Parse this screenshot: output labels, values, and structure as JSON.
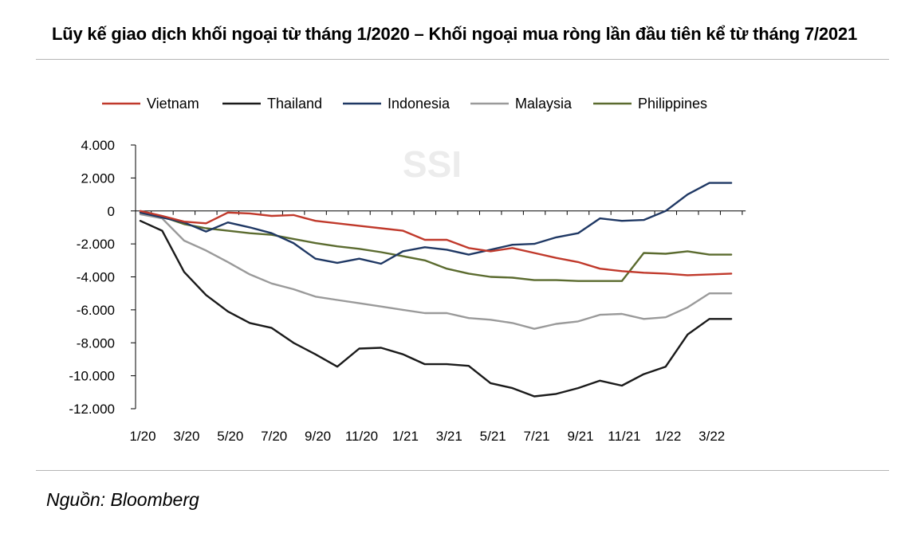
{
  "title": "Lũy kế giao dịch khối ngoại từ tháng 1/2020 – Khối ngoại mua ròng lần đầu tiên kể từ tháng 7/2021",
  "source": "Nguồn: Bloomberg",
  "watermark": "SSI",
  "chart_data": {
    "type": "line",
    "title": "Lũy kế giao dịch khối ngoại từ tháng 1/2020 – Khối ngoại mua ròng lần đầu tiên kể từ tháng 7/2021",
    "xlabel": "",
    "ylabel": "",
    "ylim": [
      -12000,
      4000
    ],
    "yticks": [
      4000,
      2000,
      0,
      -2000,
      -4000,
      -6000,
      -8000,
      -10000,
      -12000
    ],
    "ytick_labels": [
      "4.000",
      "2.000",
      "0",
      "-2.000",
      "-4.000",
      "-6.000",
      "-8.000",
      "-10.000",
      "-12.000"
    ],
    "x": [
      "1/20",
      "2/20",
      "3/20",
      "4/20",
      "5/20",
      "6/20",
      "7/20",
      "8/20",
      "9/20",
      "10/20",
      "11/20",
      "12/20",
      "1/21",
      "2/21",
      "3/21",
      "4/21",
      "5/21",
      "6/21",
      "7/21",
      "8/21",
      "9/21",
      "10/21",
      "11/21",
      "12/21",
      "1/22",
      "2/22",
      "3/22",
      "4/22"
    ],
    "xtick_labels": [
      "1/20",
      "3/20",
      "5/20",
      "7/20",
      "9/20",
      "11/20",
      "1/21",
      "3/21",
      "5/21",
      "7/21",
      "9/21",
      "11/21",
      "1/22",
      "3/22"
    ],
    "legend_position": "top",
    "grid": false,
    "series": [
      {
        "name": "Vietnam",
        "color": "#c0392b",
        "values": [
          0,
          -300,
          -650,
          -750,
          -100,
          -150,
          -300,
          -250,
          -600,
          -750,
          -900,
          -1050,
          -1200,
          -1750,
          -1750,
          -2250,
          -2450,
          -2250,
          -2550,
          -2850,
          -3100,
          -3500,
          -3650,
          -3750,
          -3800,
          -3900,
          -3850,
          -3800
        ]
      },
      {
        "name": "Thailand",
        "color": "#1a1a1a",
        "values": [
          -600,
          -1200,
          -3700,
          -5100,
          -6100,
          -6800,
          -7100,
          -8000,
          -8700,
          -9450,
          -8350,
          -8300,
          -8700,
          -9300,
          -9300,
          -9400,
          -10450,
          -10750,
          -11250,
          -11100,
          -10750,
          -10300,
          -10600,
          -9900,
          -9450,
          -7500,
          -6550,
          -6550
        ]
      },
      {
        "name": "Indonesia",
        "color": "#1f3864",
        "values": [
          -100,
          -400,
          -700,
          -1250,
          -700,
          -1000,
          -1350,
          -1950,
          -2900,
          -3150,
          -2900,
          -3200,
          -2450,
          -2200,
          -2350,
          -2650,
          -2350,
          -2050,
          -2000,
          -1600,
          -1350,
          -450,
          -600,
          -550,
          0,
          1000,
          1700,
          1700
        ]
      },
      {
        "name": "Malaysia",
        "color": "#9a9a9a",
        "values": [
          -200,
          -450,
          -1800,
          -2400,
          -3100,
          -3850,
          -4400,
          -4750,
          -5200,
          -5400,
          -5600,
          -5800,
          -6000,
          -6200,
          -6200,
          -6500,
          -6600,
          -6800,
          -7150,
          -6850,
          -6700,
          -6300,
          -6250,
          -6550,
          -6450,
          -5850,
          -5000,
          -5000
        ]
      },
      {
        "name": "Philippines",
        "color": "#5b6b2f",
        "values": [
          -100,
          -350,
          -800,
          -1050,
          -1200,
          -1350,
          -1450,
          -1700,
          -1950,
          -2150,
          -2300,
          -2500,
          -2750,
          -3000,
          -3500,
          -3800,
          -4000,
          -4050,
          -4200,
          -4200,
          -4250,
          -4250,
          -4250,
          -2550,
          -2600,
          -2450,
          -2650,
          -2650
        ]
      }
    ]
  }
}
